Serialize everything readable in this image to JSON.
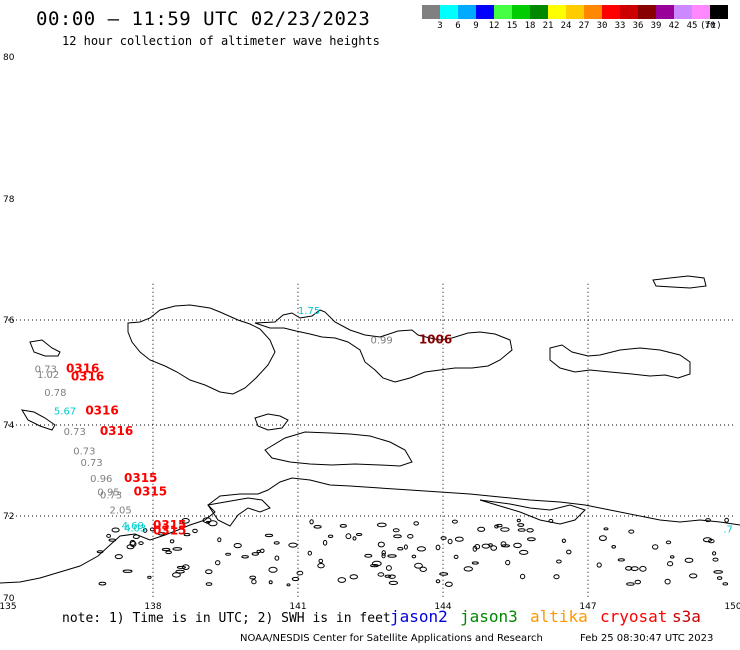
{
  "header": {
    "title": "00:00 – 11:59 UTC 02/23/2023",
    "subtitle": "12 hour collection of altimeter wave heights"
  },
  "color_scale": {
    "unit": "(ft)",
    "bins": [
      {
        "label": "3",
        "color": "#808080"
      },
      {
        "label": "6",
        "color": "#00ffff"
      },
      {
        "label": "9",
        "color": "#00aaff"
      },
      {
        "label": "12",
        "color": "#0000ff"
      },
      {
        "label": "15",
        "color": "#44ff44"
      },
      {
        "label": "18",
        "color": "#00cc00"
      },
      {
        "label": "21",
        "color": "#008800"
      },
      {
        "label": "24",
        "color": "#ffff00"
      },
      {
        "label": "27",
        "color": "#ffcc00"
      },
      {
        "label": "30",
        "color": "#ff8800"
      },
      {
        "label": "33",
        "color": "#ff0000"
      },
      {
        "label": "36",
        "color": "#cc0000"
      },
      {
        "label": "39",
        "color": "#880000"
      },
      {
        "label": "42",
        "color": "#990099"
      },
      {
        "label": "45",
        "color": "#cc88ff"
      },
      {
        "label": "70",
        "color": "#ff88ff"
      },
      {
        "label": "",
        "color": "#000000"
      }
    ]
  },
  "axes": {
    "lat_labels": [
      "80",
      "78",
      "76",
      "74",
      "72",
      "70"
    ],
    "lon_labels": [
      "135",
      "138",
      "141",
      "144",
      "147",
      "150"
    ]
  },
  "observations": [
    {
      "text": "0.73",
      "color": "#808080",
      "lon": 135.55,
      "lat": 75.0
    },
    {
      "text": "1.02",
      "color": "#808080",
      "lon": 135.6,
      "lat": 74.9
    },
    {
      "text": "0.78",
      "color": "#808080",
      "lon": 135.75,
      "lat": 74.55
    },
    {
      "text": "5.67",
      "color": "#00cccc",
      "lon": 135.95,
      "lat": 74.2
    },
    {
      "text": "0.73",
      "color": "#808080",
      "lon": 136.15,
      "lat": 73.78
    },
    {
      "text": "0.73",
      "color": "#808080",
      "lon": 136.35,
      "lat": 73.35
    },
    {
      "text": "0.73",
      "color": "#808080",
      "lon": 136.5,
      "lat": 73.1
    },
    {
      "text": "0.96",
      "color": "#808080",
      "lon": 136.7,
      "lat": 72.75
    },
    {
      "text": "0.95",
      "color": "#808080",
      "lon": 136.85,
      "lat": 72.45
    },
    {
      "text": "0.73",
      "color": "#808080",
      "lon": 136.9,
      "lat": 72.38
    },
    {
      "text": "2.05",
      "color": "#808080",
      "lon": 137.1,
      "lat": 72.05
    },
    {
      "text": "4.69",
      "color": "#00cccc",
      "lon": 137.35,
      "lat": 71.68
    },
    {
      "text": "4.03",
      "color": "#00cccc",
      "lon": 137.4,
      "lat": 71.62
    },
    {
      "text": "1.75",
      "color": "#00cccc",
      "lon": 141.0,
      "lat": 76.1
    },
    {
      "text": "0.99",
      "color": "#808080",
      "lon": 142.5,
      "lat": 75.55
    },
    {
      "text": ".7",
      "color": "#00cccc",
      "lon": 149.8,
      "lat": 71.6
    }
  ],
  "pass_labels": [
    {
      "text": "0316",
      "color": "#ff0000",
      "lon": 136.2,
      "lat": 75.0
    },
    {
      "text": "0316",
      "color": "#ff0000",
      "lon": 136.3,
      "lat": 74.85
    },
    {
      "text": "0316",
      "color": "#ff0000",
      "lon": 136.6,
      "lat": 74.2
    },
    {
      "text": "0316",
      "color": "#ff0000",
      "lon": 136.9,
      "lat": 73.78
    },
    {
      "text": "0315",
      "color": "#ff0000",
      "lon": 137.4,
      "lat": 72.75
    },
    {
      "text": "0315",
      "color": "#ff0000",
      "lon": 137.6,
      "lat": 72.45
    },
    {
      "text": "0315",
      "color": "#ff0000",
      "lon": 138.0,
      "lat": 71.68
    },
    {
      "text": "0315",
      "color": "#ff0000",
      "lon": 138.0,
      "lat": 71.55
    },
    {
      "text": "1006",
      "color": "#880000",
      "lon": 143.5,
      "lat": 75.55
    }
  ],
  "footer": {
    "note": "note:  1) Time is in UTC;  2) SWH is in feet",
    "satellites": [
      {
        "name": "jason2",
        "color": "#0000dd"
      },
      {
        "name": "jason3",
        "color": "#008800"
      },
      {
        "name": "altika",
        "color": "#ff9900"
      },
      {
        "name": "cryosat",
        "color": "#ff0000"
      },
      {
        "name": "s3a",
        "color": "#cc0000"
      }
    ],
    "credit": "NOAA/NESDIS Center for Satellite Applications and Research",
    "timestamp": "Feb 25 08:30:47 UTC 2023"
  }
}
